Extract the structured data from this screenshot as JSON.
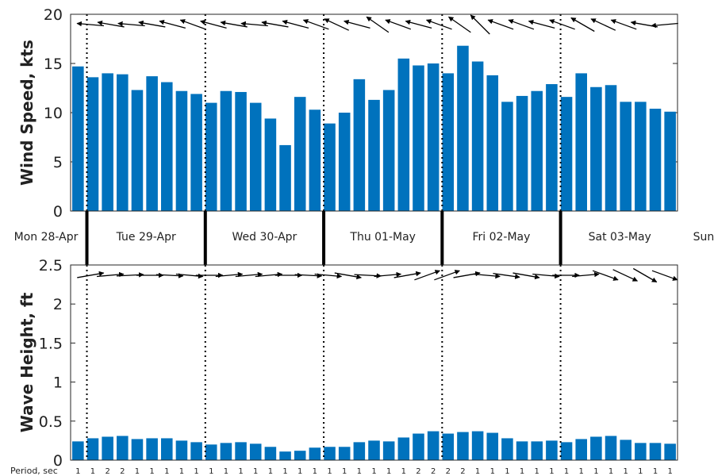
{
  "chart_data": [
    {
      "type": "bar",
      "ylabel": "Wind Speed, kts",
      "ylim": [
        0,
        20
      ],
      "yticks": [
        0,
        5,
        10,
        15,
        20
      ],
      "values": [
        14.7,
        13.6,
        14.0,
        13.9,
        12.3,
        13.7,
        13.1,
        12.2,
        11.9,
        11.0,
        12.2,
        12.1,
        11.0,
        9.4,
        6.7,
        11.6,
        10.3,
        8.9,
        10.0,
        13.4,
        11.3,
        12.3,
        15.5,
        14.8,
        15.0,
        14.0,
        16.8,
        15.2,
        13.8,
        11.1,
        11.7,
        12.2,
        12.9,
        11.6,
        14.0,
        12.6,
        12.8,
        11.1,
        11.1,
        10.4,
        10.1
      ],
      "direction_arrows": "wind-direction-arrows",
      "color": "#0072bd"
    },
    {
      "type": "bar",
      "ylabel": "Wave Height, ft",
      "ylim": [
        0,
        2.5
      ],
      "yticks": [
        "0",
        "0.5",
        "1",
        "1.5",
        "2",
        "2.5"
      ],
      "values": [
        0.24,
        0.28,
        0.3,
        0.31,
        0.27,
        0.28,
        0.28,
        0.25,
        0.23,
        0.2,
        0.22,
        0.23,
        0.21,
        0.17,
        0.11,
        0.12,
        0.16,
        0.17,
        0.17,
        0.23,
        0.25,
        0.24,
        0.29,
        0.34,
        0.37,
        0.34,
        0.36,
        0.37,
        0.35,
        0.28,
        0.24,
        0.24,
        0.25,
        0.23,
        0.27,
        0.3,
        0.31,
        0.26,
        0.22,
        0.22,
        0.21
      ],
      "direction_arrows": "wave-direction-arrows",
      "period_label": "Period, sec",
      "periods": [
        1,
        1,
        2,
        2,
        1,
        1,
        1,
        1,
        1,
        1,
        1,
        1,
        1,
        1,
        1,
        1,
        1,
        1,
        1,
        1,
        1,
        1,
        1,
        2,
        2,
        2,
        2,
        1,
        1,
        1,
        1,
        1,
        1,
        1,
        1,
        1,
        1,
        1,
        1,
        1,
        1
      ],
      "color": "#0072bd"
    }
  ],
  "days": [
    "Mon 28-Apr",
    "Tue 29-Apr",
    "Wed 30-Apr",
    "Thu 01-May",
    "Fri 02-May",
    "Sat 03-May",
    "Sun"
  ],
  "day_boundaries_bar_index": [
    1,
    9,
    17,
    25,
    33
  ],
  "wind_arrow_angles_deg": [
    185,
    190,
    185,
    190,
    195,
    200,
    195,
    190,
    185,
    190,
    195,
    200,
    205,
    195,
    215,
    200,
    195,
    200,
    215,
    225,
    200,
    200,
    195,
    200,
    210,
    205,
    200,
    190,
    175
  ],
  "wave_arrow_angles_deg": [
    -10,
    -5,
    -3,
    0,
    3,
    5,
    0,
    -5,
    -5,
    -5,
    0,
    3,
    5,
    10,
    3,
    -5,
    -10,
    -20,
    -20,
    -10,
    5,
    8,
    10,
    5,
    0,
    -5,
    20,
    25,
    30,
    20
  ]
}
